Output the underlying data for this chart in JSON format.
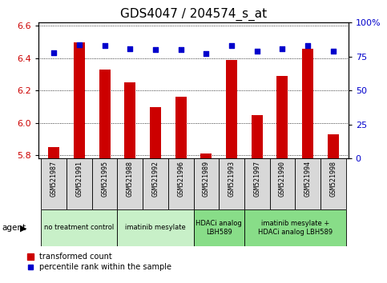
{
  "title": "GDS4047 / 204574_s_at",
  "samples": [
    "GSM521987",
    "GSM521991",
    "GSM521995",
    "GSM521988",
    "GSM521992",
    "GSM521996",
    "GSM521989",
    "GSM521993",
    "GSM521997",
    "GSM521990",
    "GSM521994",
    "GSM521998"
  ],
  "bar_values": [
    5.85,
    6.5,
    6.33,
    6.25,
    6.1,
    6.16,
    5.81,
    6.39,
    6.05,
    6.29,
    6.46,
    5.93
  ],
  "dot_values": [
    78,
    84,
    83,
    81,
    80,
    80,
    77,
    83,
    79,
    81,
    83,
    79
  ],
  "ylim_left": [
    5.78,
    6.62
  ],
  "ylim_right": [
    0,
    100
  ],
  "yticks_left": [
    5.8,
    6.0,
    6.2,
    6.4,
    6.6
  ],
  "yticks_right": [
    0,
    25,
    50,
    75,
    100
  ],
  "bar_color": "#cc0000",
  "dot_color": "#0000cc",
  "grid_color": "#000000",
  "agent_groups": [
    {
      "label": "no treatment control",
      "start": 0,
      "end": 3,
      "color": "#c8f0c8"
    },
    {
      "label": "imatinib mesylate",
      "start": 3,
      "end": 6,
      "color": "#c8f0c8"
    },
    {
      "label": "HDACi analog\nLBH589",
      "start": 6,
      "end": 8,
      "color": "#88dd88"
    },
    {
      "label": "imatinib mesylate +\nHDACi analog LBH589",
      "start": 8,
      "end": 12,
      "color": "#88dd88"
    }
  ],
  "legend_bar_label": "transformed count",
  "legend_dot_label": "percentile rank within the sample",
  "tick_label_color_left": "#cc0000",
  "tick_label_color_right": "#0000cc",
  "title_fontsize": 11,
  "tick_fontsize": 8,
  "sample_tick_fontsize": 6
}
